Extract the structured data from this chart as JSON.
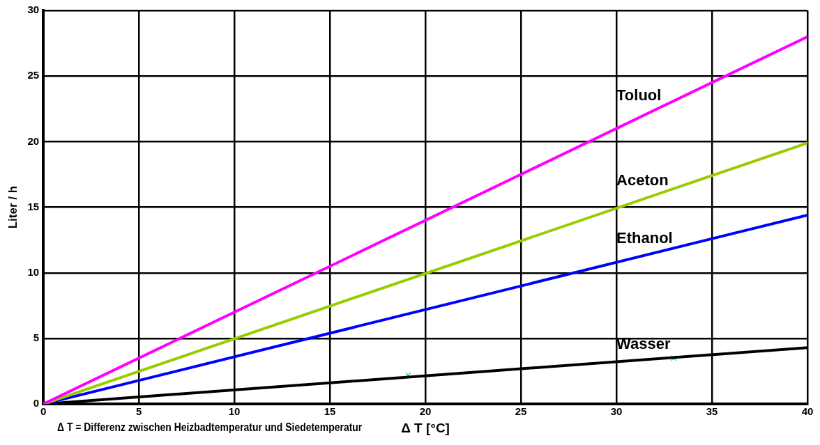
{
  "chart_data": {
    "type": "line",
    "xlabel": "Δ T [°C]",
    "ylabel": "Liter / h",
    "annotations": [
      "Δ T = Differenz zwischen Heizbadtemperatur und Siedetemperatur"
    ],
    "xlim": [
      0,
      40
    ],
    "xticks": [
      0,
      5,
      10,
      15,
      20,
      25,
      30,
      35,
      40
    ],
    "ylim": [
      0,
      30
    ],
    "yticks": [
      0,
      5,
      10,
      15,
      20,
      25,
      30
    ],
    "grid": true,
    "legend": false,
    "marker": "none",
    "line_style": "solid",
    "series": [
      {
        "name": "Toluol",
        "color": "#ff00ff",
        "x": [
          0,
          40
        ],
        "values": [
          0,
          28
        ]
      },
      {
        "name": "Aceton",
        "color": "#99cc00",
        "x": [
          0,
          40
        ],
        "values": [
          0,
          19.9
        ]
      },
      {
        "name": "Ethanol",
        "color": "#0000ff",
        "x": [
          0,
          40
        ],
        "values": [
          0,
          14.4
        ]
      },
      {
        "name": "Wasser",
        "color": "#000000",
        "x": [
          0,
          40
        ],
        "values": [
          0,
          4.3
        ]
      },
      {
        "type": "scatter",
        "marker": "cross",
        "color": "#00e0e0",
        "x": [
          19.1,
          33
        ],
        "values": [
          2.2,
          3.5
        ]
      }
    ]
  }
}
